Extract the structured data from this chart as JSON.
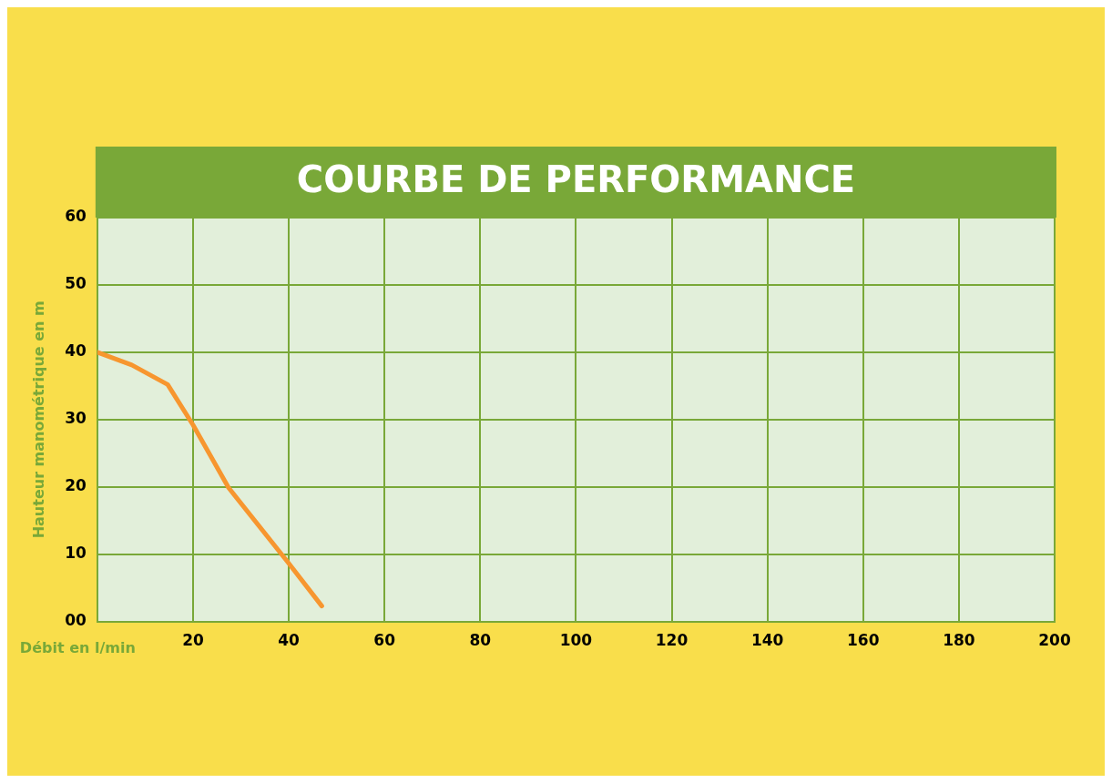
{
  "chart_data": {
    "type": "line",
    "title": "COURBE DE PERFORMANCE",
    "xlabel": "Débit en l/min",
    "ylabel": "Hauteur manométrique en m",
    "series": [
      {
        "color": "#f7962f",
        "x": [
          0,
          7.2,
          14.7,
          20,
          27.4,
          39.7,
          46.9
        ],
        "values": [
          40,
          38.1,
          35.2,
          29.2,
          19.9,
          8.9,
          2.3
        ]
      }
    ],
    "xlim": [
      0,
      200
    ],
    "xticks": [
      {
        "value": 0,
        "label": null
      },
      20,
      40,
      60,
      80,
      100,
      120,
      140,
      160,
      180,
      200
    ],
    "ylim": [
      0,
      60
    ],
    "yticks": [
      {
        "value": 0,
        "label": "00"
      },
      10,
      20,
      30,
      40,
      50,
      60
    ],
    "grid": true,
    "legend": false,
    "marker": "none",
    "line_style": "solid"
  }
}
